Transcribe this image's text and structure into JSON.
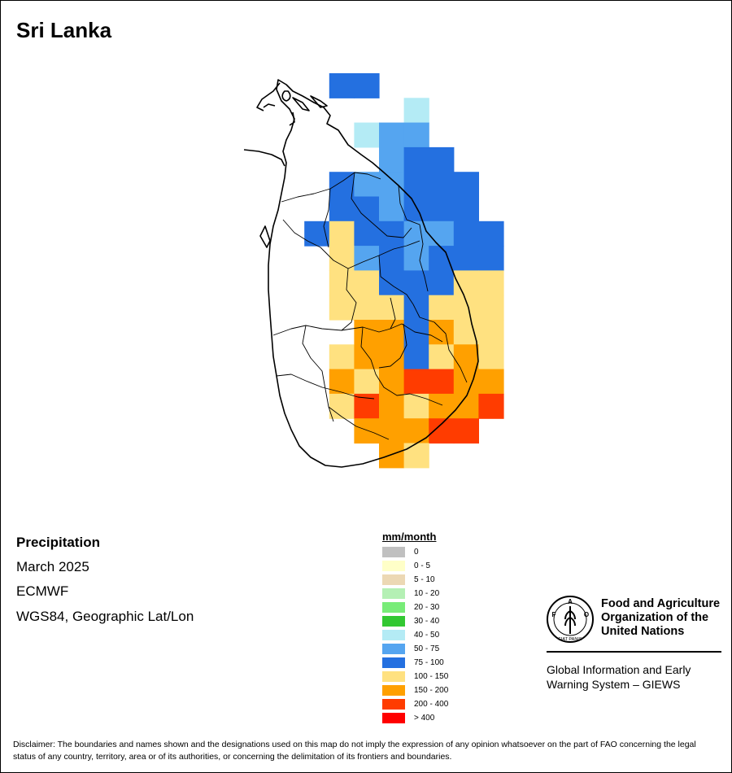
{
  "title": "Sri Lanka",
  "info": {
    "variable": "Precipitation",
    "period": "March 2025",
    "model": "ECMWF",
    "projection": "WGS84, Geographic Lat/Lon"
  },
  "legend": {
    "title": "mm/month",
    "items": [
      {
        "label": "0",
        "color": "#c0c0c0"
      },
      {
        "label": "0 - 5",
        "color": "#ffffc8"
      },
      {
        "label": "5 - 10",
        "color": "#ecd8b4"
      },
      {
        "label": "10 - 20",
        "color": "#b4f0b4"
      },
      {
        "label": "20 - 30",
        "color": "#78ec78"
      },
      {
        "label": "30 - 40",
        "color": "#32c832"
      },
      {
        "label": "40 - 50",
        "color": "#b4ebf5"
      },
      {
        "label": "50 - 75",
        "color": "#55a5f0"
      },
      {
        "label": "75 - 100",
        "color": "#2470e0"
      },
      {
        "label": "100 - 150",
        "color": "#ffe180"
      },
      {
        "label": "150 - 200",
        "color": "#ffa000"
      },
      {
        "label": "200 - 400",
        "color": "#ff3c00"
      },
      {
        "label": "> 400",
        "color": "#ff0000"
      }
    ]
  },
  "grid_rows": [
    "...BB.....",
    "......L...",
    "....LMM...",
    ".....MBB..",
    "...BMMBBB.",
    "...BBMBBB.",
    "..BYBBMMBB",
    "...YMBMBBB",
    "...YYBBBYY",
    "...YYYBYYY",
    "....OOBOYY",
    "...YOOBYOY",
    "...OYORROO",
    "...YROYOOR",
    "....OOORR.",
    ".....OY..."
  ],
  "color_codes": {
    "L": "#b4ebf5",
    "M": "#55a5f0",
    "B": "#2470e0",
    "Y": "#ffe180",
    "O": "#ffa000",
    "R": "#ff3c00"
  },
  "org": {
    "name": "Food and Agriculture Organization of the United Nations",
    "logo_letters": "F A O",
    "logo_motto": "FIAT PANIS",
    "system": "Global Information and Early Warning System – GIEWS"
  },
  "disclaimer": "Disclaimer: The boundaries and names shown and the designations used on this map do not imply the expression of any opinion whatsoever on the part of FAO concerning the legal status of any country, territory, area or of its authorities, or concerning the delimitation of its frontiers and boundaries."
}
